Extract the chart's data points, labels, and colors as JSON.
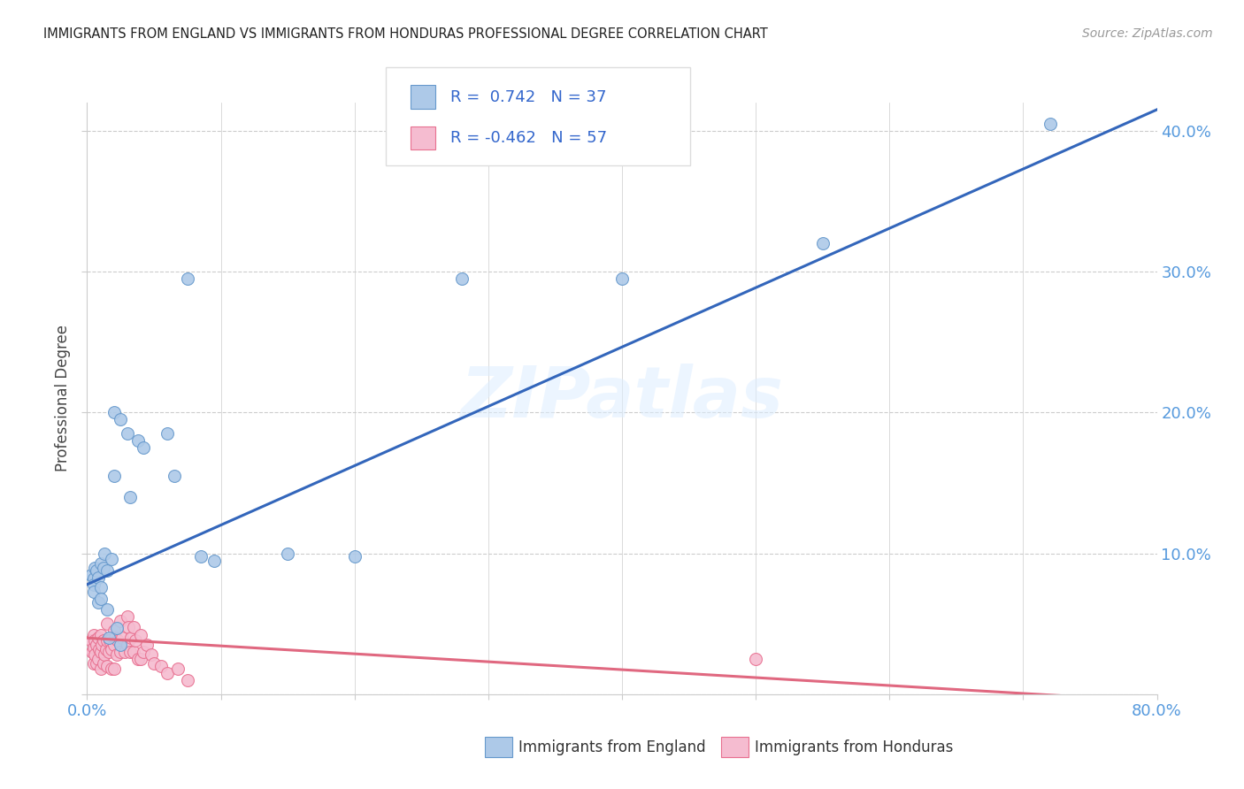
{
  "title": "IMMIGRANTS FROM ENGLAND VS IMMIGRANTS FROM HONDURAS PROFESSIONAL DEGREE CORRELATION CHART",
  "source": "Source: ZipAtlas.com",
  "ylabel": "Professional Degree",
  "xmin": 0.0,
  "xmax": 0.8,
  "ymin": 0.0,
  "ymax": 0.42,
  "xticks": [
    0.0,
    0.1,
    0.2,
    0.3,
    0.4,
    0.5,
    0.6,
    0.7,
    0.8
  ],
  "yticks": [
    0.0,
    0.1,
    0.2,
    0.3,
    0.4
  ],
  "england_color": "#adc9e8",
  "england_edge_color": "#6699cc",
  "honduras_color": "#f5bcd0",
  "honduras_edge_color": "#e87090",
  "england_line_color": "#3366bb",
  "honduras_line_color": "#e06880",
  "legend_england_label": "Immigrants from England",
  "legend_honduras_label": "Immigrants from Honduras",
  "england_R": 0.742,
  "england_N": 37,
  "honduras_R": -0.462,
  "honduras_N": 57,
  "watermark": "ZIPatlas",
  "england_line_x": [
    0.0,
    0.8
  ],
  "england_line_y": [
    0.078,
    0.415
  ],
  "honduras_line_x": [
    0.0,
    0.8
  ],
  "honduras_line_y": [
    0.04,
    -0.005
  ],
  "england_x": [
    0.003,
    0.005,
    0.005,
    0.005,
    0.006,
    0.007,
    0.008,
    0.008,
    0.01,
    0.01,
    0.01,
    0.012,
    0.013,
    0.015,
    0.015,
    0.016,
    0.018,
    0.02,
    0.02,
    0.022,
    0.025,
    0.03,
    0.032,
    0.038,
    0.042,
    0.06,
    0.065,
    0.075,
    0.085,
    0.095,
    0.15,
    0.2,
    0.28,
    0.4,
    0.55,
    0.72,
    0.025
  ],
  "england_y": [
    0.085,
    0.082,
    0.078,
    0.073,
    0.09,
    0.088,
    0.083,
    0.065,
    0.093,
    0.076,
    0.068,
    0.09,
    0.1,
    0.088,
    0.06,
    0.04,
    0.096,
    0.2,
    0.155,
    0.047,
    0.195,
    0.185,
    0.14,
    0.18,
    0.175,
    0.185,
    0.155,
    0.295,
    0.098,
    0.095,
    0.1,
    0.098,
    0.295,
    0.295,
    0.32,
    0.405,
    0.035
  ],
  "honduras_x": [
    0.003,
    0.004,
    0.005,
    0.005,
    0.005,
    0.006,
    0.006,
    0.007,
    0.007,
    0.008,
    0.008,
    0.009,
    0.01,
    0.01,
    0.01,
    0.011,
    0.012,
    0.012,
    0.013,
    0.014,
    0.015,
    0.015,
    0.015,
    0.016,
    0.017,
    0.018,
    0.018,
    0.02,
    0.02,
    0.02,
    0.021,
    0.022,
    0.023,
    0.025,
    0.025,
    0.026,
    0.028,
    0.03,
    0.03,
    0.031,
    0.032,
    0.033,
    0.035,
    0.035,
    0.036,
    0.038,
    0.04,
    0.04,
    0.042,
    0.045,
    0.048,
    0.05,
    0.055,
    0.06,
    0.068,
    0.075,
    0.5
  ],
  "honduras_y": [
    0.038,
    0.03,
    0.042,
    0.033,
    0.022,
    0.038,
    0.028,
    0.035,
    0.022,
    0.04,
    0.025,
    0.032,
    0.042,
    0.03,
    0.018,
    0.035,
    0.038,
    0.022,
    0.028,
    0.032,
    0.05,
    0.038,
    0.02,
    0.03,
    0.038,
    0.032,
    0.018,
    0.045,
    0.035,
    0.018,
    0.04,
    0.028,
    0.038,
    0.052,
    0.03,
    0.04,
    0.03,
    0.055,
    0.035,
    0.048,
    0.03,
    0.04,
    0.048,
    0.03,
    0.038,
    0.025,
    0.042,
    0.025,
    0.03,
    0.035,
    0.028,
    0.022,
    0.02,
    0.015,
    0.018,
    0.01,
    0.025
  ]
}
